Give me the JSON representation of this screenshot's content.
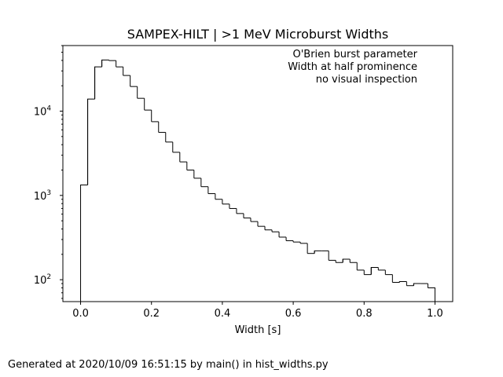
{
  "chart_data": {
    "type": "histogram",
    "title": "SAMPEX-HILT | >1 MeV Microburst Widths",
    "xlabel": "Width [s]",
    "ylabel": "",
    "yscale": "log",
    "xlim": [
      -0.05,
      1.05
    ],
    "ylim": [
      55,
      60000
    ],
    "x_ticks": [
      0.0,
      0.2,
      0.4,
      0.6,
      0.8,
      1.0
    ],
    "x_tick_labels": [
      "0.0",
      "0.2",
      "0.4",
      "0.6",
      "0.8",
      "1.0"
    ],
    "y_ticks": [
      100,
      1000,
      10000
    ],
    "y_tick_labels": [
      {
        "base": "10",
        "exp": "2"
      },
      {
        "base": "10",
        "exp": "3"
      },
      {
        "base": "10",
        "exp": "4"
      }
    ],
    "annotations": [
      "O'Brien burst parameter",
      "Width at half prominence",
      "no visual inspection"
    ],
    "bin_edges_start": 0.0,
    "bin_width": 0.02,
    "counts": [
      1330,
      13900,
      33500,
      40500,
      39800,
      33500,
      26500,
      19600,
      14200,
      10300,
      7500,
      5600,
      4300,
      3250,
      2500,
      2000,
      1600,
      1270,
      1050,
      900,
      790,
      700,
      610,
      540,
      490,
      430,
      390,
      370,
      320,
      290,
      280,
      270,
      205,
      220,
      220,
      170,
      160,
      175,
      160,
      130,
      115,
      140,
      130,
      115,
      93,
      95,
      85,
      90,
      90,
      80
    ]
  },
  "footer": {
    "text": "Generated at 2020/10/09 16:51:15 by main() in hist_widths.py"
  }
}
